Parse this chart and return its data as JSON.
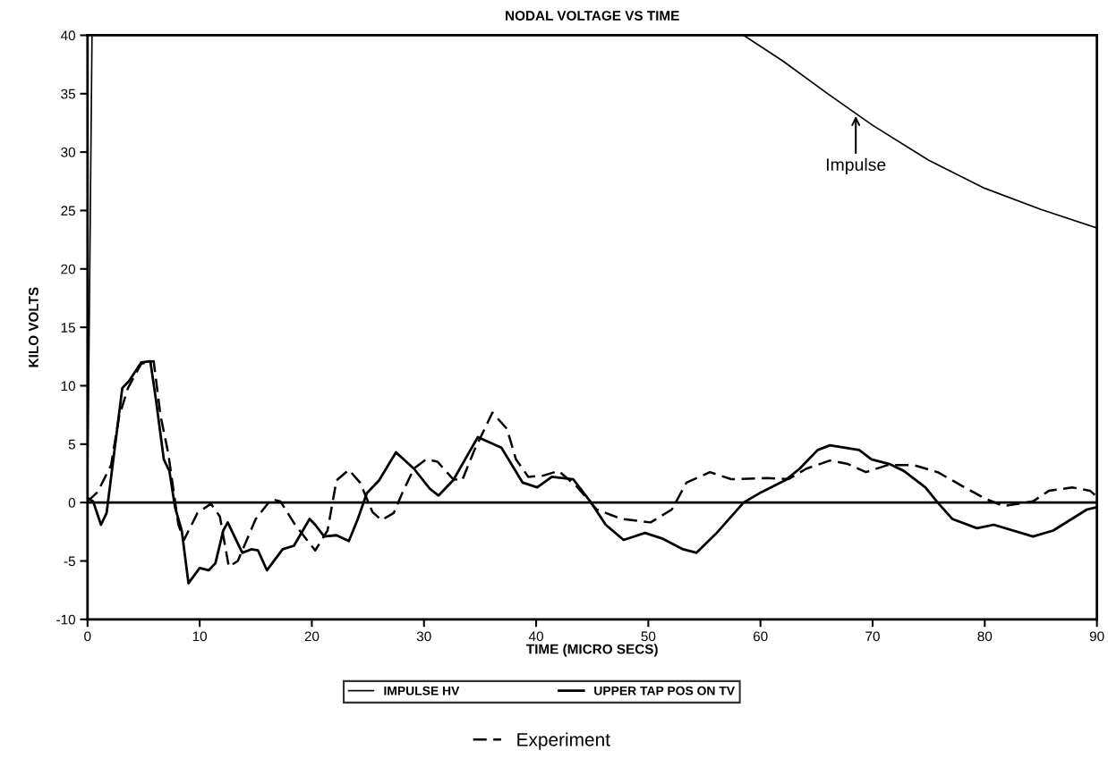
{
  "chart_data": {
    "type": "line",
    "title": "NODAL VOLTAGE VS TIME",
    "xlabel": "TIME (MICRO SECS)",
    "ylabel": "KILO VOLTS",
    "xlim": [
      0,
      90
    ],
    "xticks": [
      0,
      10,
      20,
      30,
      40,
      50,
      60,
      70,
      80,
      90
    ],
    "ylim": [
      -10,
      40
    ],
    "yticks": [
      -10,
      -5,
      0,
      5,
      10,
      15,
      20,
      25,
      30,
      35,
      40
    ],
    "grid": false,
    "legend": "bottom",
    "marker": "none",
    "ref_lines": [
      {
        "axis": "y",
        "value": 0,
        "color": "#000000"
      }
    ],
    "annotations": [
      {
        "text": "Impulse",
        "x": 68.5,
        "y": 33.3
      }
    ],
    "series": [
      {
        "name": "IMPULSE HV",
        "color": "#000000",
        "line_style": "solid",
        "x": [
          0,
          0.2,
          0.4,
          20,
          58.5,
          62,
          66,
          70,
          75,
          80,
          85,
          90
        ],
        "values": [
          0,
          20,
          40,
          null,
          40,
          37.8,
          35,
          32.3,
          29.3,
          26.9,
          25.1,
          23.5
        ]
      },
      {
        "name": "UPPER TAP POS ON TV",
        "color": "#000000",
        "line_style": "solid",
        "x": [
          0,
          0.5,
          1.2,
          1.7,
          2.8,
          3.1,
          3.7,
          4.8,
          5.6,
          6.1,
          6.8,
          7.3,
          7.8,
          8.4,
          9.0,
          10.0,
          10.8,
          11.4,
          12.1,
          12.5,
          13.8,
          14.6,
          15.2,
          16.0,
          17.4,
          18.4,
          19.8,
          20.3,
          21.1,
          22.2,
          23.3,
          24.1,
          24.9,
          26.0,
          27.5,
          29.1,
          30.5,
          31.3,
          32.6,
          34.8,
          36.9,
          38.8,
          40.1,
          41.4,
          43.3,
          44.9,
          46.2,
          47.8,
          49.7,
          51.3,
          53.1,
          54.3,
          56.1,
          58.5,
          60.1,
          62.2,
          63.5,
          65.1,
          66.2,
          68.8,
          69.9,
          71.5,
          72.8,
          74.7,
          75.8,
          77.1,
          79.3,
          80.8,
          84.3,
          86.1,
          89.1,
          90
        ],
        "values": [
          0.4,
          0.1,
          -1.9,
          -0.9,
          7.5,
          9.8,
          10.4,
          12.0,
          12.1,
          8.8,
          3.7,
          2.7,
          -0.4,
          -2.4,
          -6.9,
          -5.6,
          -5.8,
          -5.2,
          -2.4,
          -1.7,
          -4.3,
          -4.0,
          -4.1,
          -5.8,
          -4.0,
          -3.7,
          -1.4,
          -1.9,
          -2.9,
          -2.8,
          -3.3,
          -1.4,
          0.8,
          1.9,
          4.3,
          2.9,
          1.2,
          0.6,
          1.9,
          5.6,
          4.7,
          1.7,
          1.3,
          2.2,
          2.0,
          0,
          -1.9,
          -3.2,
          -2.6,
          -3.1,
          -4.0,
          -4.3,
          -2.6,
          0,
          0.9,
          1.9,
          2.9,
          4.5,
          4.9,
          4.5,
          3.7,
          3.3,
          2.7,
          1.3,
          0,
          -1.4,
          -2.2,
          -1.9,
          -2.9,
          -2.4,
          -0.6,
          -0.4
        ]
      },
      {
        "name": "Experiment",
        "color": "#000000",
        "line_style": "dashed",
        "x": [
          0,
          0.9,
          2.1,
          2.8,
          3.6,
          4.8,
          5.9,
          6.5,
          7.2,
          8.1,
          8.6,
          9.8,
          11.0,
          11.8,
          12.6,
          13.4,
          15.0,
          16.4,
          17.2,
          18.5,
          20.3,
          21.4,
          22.2,
          23.3,
          24.3,
          25.4,
          26.2,
          27.3,
          28.1,
          29.1,
          30.2,
          31.2,
          32.6,
          33.4,
          34.5,
          36.1,
          37.4,
          38.2,
          39.3,
          40.6,
          42.0,
          43.6,
          45.4,
          47.6,
          50.2,
          52.1,
          53.4,
          55.5,
          57.4,
          60.6,
          62.5,
          64.1,
          66.2,
          67.8,
          69.4,
          71.3,
          73.7,
          75.8,
          78.2,
          80.1,
          81.7,
          84.3,
          85.7,
          87.8,
          89.4,
          90
        ],
        "values": [
          0.1,
          0.9,
          3.2,
          7.3,
          9.8,
          11.9,
          12.1,
          7.5,
          4.2,
          -1.9,
          -3.2,
          -0.9,
          -0.1,
          -1.2,
          -5.5,
          -5.0,
          -1.4,
          0.3,
          0.1,
          -1.9,
          -4.1,
          -2.4,
          1.9,
          2.8,
          1.7,
          -0.8,
          -1.5,
          -0.9,
          0.9,
          2.9,
          3.7,
          3.5,
          2.0,
          1.9,
          4.5,
          7.7,
          6.3,
          3.7,
          2.2,
          2.3,
          2.7,
          1.4,
          -0.6,
          -1.4,
          -1.7,
          -0.6,
          1.7,
          2.6,
          2.0,
          2.1,
          2.0,
          2.9,
          3.6,
          3.3,
          2.6,
          3.2,
          3.2,
          2.6,
          1.3,
          0.3,
          -0.3,
          0.1,
          1.0,
          1.3,
          1.0,
          0.5
        ]
      }
    ]
  }
}
